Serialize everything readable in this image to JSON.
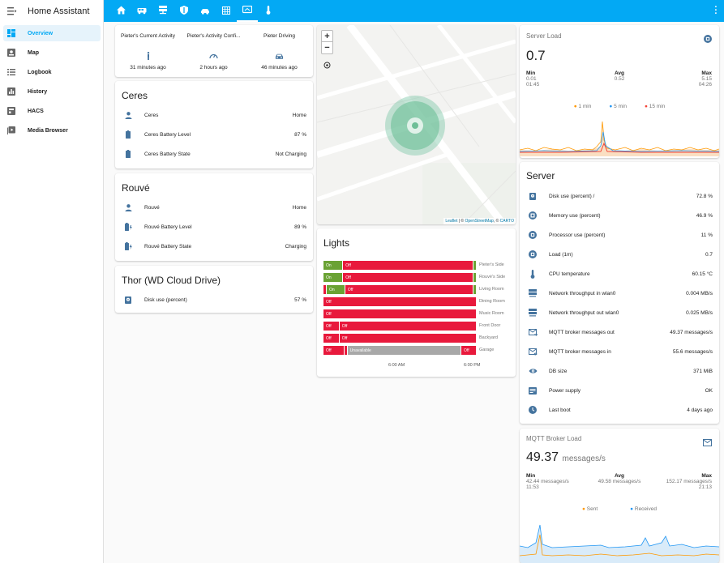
{
  "app": {
    "title": "Home Assistant"
  },
  "sidebar": {
    "items": [
      {
        "label": "Overview",
        "icon": "dashboard-icon",
        "active": true
      },
      {
        "label": "Map",
        "icon": "map-icon"
      },
      {
        "label": "Logbook",
        "icon": "logbook-icon"
      },
      {
        "label": "History",
        "icon": "history-icon"
      },
      {
        "label": "HACS",
        "icon": "hacs-icon"
      },
      {
        "label": "Media Browser",
        "icon": "media-browser-icon"
      }
    ]
  },
  "topbar": {
    "tabs": [
      "home-icon",
      "van-icon",
      "server-icon",
      "shield-icon",
      "car-icon",
      "grid-icon",
      "monitor-icon",
      "thermometer-icon"
    ],
    "active_tab": 6
  },
  "glance": {
    "items": [
      {
        "name": "Pieter's Current Activity",
        "time": "31 minutes ago",
        "icon": "walk-icon"
      },
      {
        "name": "Pieter's Activity Confi...",
        "time": "2 hours ago",
        "icon": "gauge-icon"
      },
      {
        "name": "Pieter Driving",
        "time": "46 minutes ago",
        "icon": "car-icon"
      }
    ]
  },
  "ceres": {
    "title": "Ceres",
    "rows": [
      {
        "label": "Ceres",
        "value": "Home",
        "icon": "person-icon"
      },
      {
        "label": "Ceres Battery Level",
        "value": "87 %",
        "icon": "battery-icon"
      },
      {
        "label": "Ceres Battery State",
        "value": "Not Charging",
        "icon": "battery-icon"
      }
    ]
  },
  "rouve": {
    "title": "Rouvé",
    "rows": [
      {
        "label": "Rouvé",
        "value": "Home",
        "icon": "person-icon"
      },
      {
        "label": "Rouvé Battery Level",
        "value": "89 %",
        "icon": "battery-charging-icon"
      },
      {
        "label": "Rouvé Battery State",
        "value": "Charging",
        "icon": "battery-charging-icon"
      }
    ]
  },
  "thor": {
    "title": "Thor (WD Cloud Drive)",
    "rows": [
      {
        "label": "Disk use (percent)",
        "value": "57 %",
        "icon": "harddisk-icon"
      }
    ]
  },
  "map": {
    "zoom_in": "+",
    "zoom_out": "−",
    "attribution_leaflet": "Leaflet",
    "attribution_sep1": " | © ",
    "attribution_osm": "OpenStreetMap",
    "attribution_sep2": ", © ",
    "attribution_carto": "CARTO"
  },
  "lights": {
    "title": "Lights",
    "rows": [
      {
        "name": "Pieter's Side",
        "segments": [
          [
            "on",
            12,
            "On"
          ],
          [
            "off",
            83,
            "Off"
          ],
          [
            "on",
            1,
            ""
          ]
        ]
      },
      {
        "name": "Rouvé's Side",
        "segments": [
          [
            "on",
            12,
            "On"
          ],
          [
            "off",
            83,
            "Off"
          ],
          [
            "on",
            1,
            ""
          ]
        ]
      },
      {
        "name": "Living Room",
        "segments": [
          [
            "off",
            1,
            ""
          ],
          [
            "on",
            12,
            "On"
          ],
          [
            "off",
            83,
            "Off"
          ],
          [
            "on",
            1,
            ""
          ]
        ]
      },
      {
        "name": "Dining Room",
        "segments": [
          [
            "off",
            100,
            "Off"
          ]
        ]
      },
      {
        "name": "Music Room",
        "segments": [
          [
            "off",
            100,
            "Off"
          ]
        ]
      },
      {
        "name": "Front Door",
        "segments": [
          [
            "off",
            10,
            "Off"
          ],
          [
            "off",
            90,
            "Off"
          ]
        ]
      },
      {
        "name": "Backyard",
        "segments": [
          [
            "off",
            10,
            "Off"
          ],
          [
            "off",
            90,
            "Off"
          ]
        ]
      },
      {
        "name": "Garage",
        "segments": [
          [
            "off",
            13,
            "Off"
          ],
          [
            "off",
            1,
            ""
          ],
          [
            "unav",
            74,
            "Unavailable"
          ],
          [
            "off",
            10,
            "Off"
          ]
        ]
      }
    ],
    "ticks": [
      "6:00 AM",
      "6:00 PM"
    ]
  },
  "server_load": {
    "title": "Server Load",
    "value": "0.7",
    "stats": [
      {
        "label": "Min",
        "value": "0.01",
        "time": "01:45"
      },
      {
        "label": "Avg",
        "value": "0.52",
        "time": ""
      },
      {
        "label": "Max",
        "value": "5.15",
        "time": "04:26"
      }
    ],
    "legend": [
      {
        "name": "1 min",
        "color": "#ff9800"
      },
      {
        "name": "5 min",
        "color": "#2196f3"
      },
      {
        "name": "15 min",
        "color": "#f44336"
      }
    ]
  },
  "server": {
    "title": "Server",
    "rows": [
      {
        "label": "Disk use (percent) /",
        "value": "72.8 %",
        "icon": "harddisk-icon"
      },
      {
        "label": "Memory use (percent)",
        "value": "46.9 %",
        "icon": "memory-icon"
      },
      {
        "label": "Processor use (percent)",
        "value": "11 %",
        "icon": "cpu-icon"
      },
      {
        "label": "Load (1m)",
        "value": "0.7",
        "icon": "cpu-icon"
      },
      {
        "label": "CPU temperature",
        "value": "60.15 °C",
        "icon": "thermometer-icon"
      },
      {
        "label": "Network throughput in wlan0",
        "value": "0.004 MB/s",
        "icon": "server-network-icon"
      },
      {
        "label": "Network throughput out wlan0",
        "value": "0.025 MB/s",
        "icon": "server-network-icon"
      },
      {
        "label": "MQTT broker messages out",
        "value": "49.37 messages/s",
        "icon": "email-out-icon"
      },
      {
        "label": "MQTT broker messages in",
        "value": "55.6 messages/s",
        "icon": "email-in-icon"
      },
      {
        "label": "DB size",
        "value": "371 MiB",
        "icon": "eye-icon"
      },
      {
        "label": "Power supply",
        "value": "OK",
        "icon": "power-supply-icon"
      },
      {
        "label": "Last boot",
        "value": "4 days ago",
        "icon": "clock-icon"
      }
    ]
  },
  "mqtt": {
    "title": "MQTT Broker Load",
    "value": "49.37",
    "unit": "messages/s",
    "stats": [
      {
        "label": "Min",
        "value": "42.44 messages/s",
        "time": "11:53"
      },
      {
        "label": "Avg",
        "value": "49.58 messages/s",
        "time": ""
      },
      {
        "label": "Max",
        "value": "152.17 messages/s",
        "time": "21:13"
      }
    ],
    "legend": [
      {
        "name": "Sent",
        "color": "#ff9800"
      },
      {
        "name": "Received",
        "color": "#2196f3"
      }
    ]
  },
  "colors": {
    "accent": "#03a9f4",
    "icon": "#44739e",
    "off": "#e8193c",
    "on": "#6aa234",
    "unavailable": "#a8a8a8"
  }
}
